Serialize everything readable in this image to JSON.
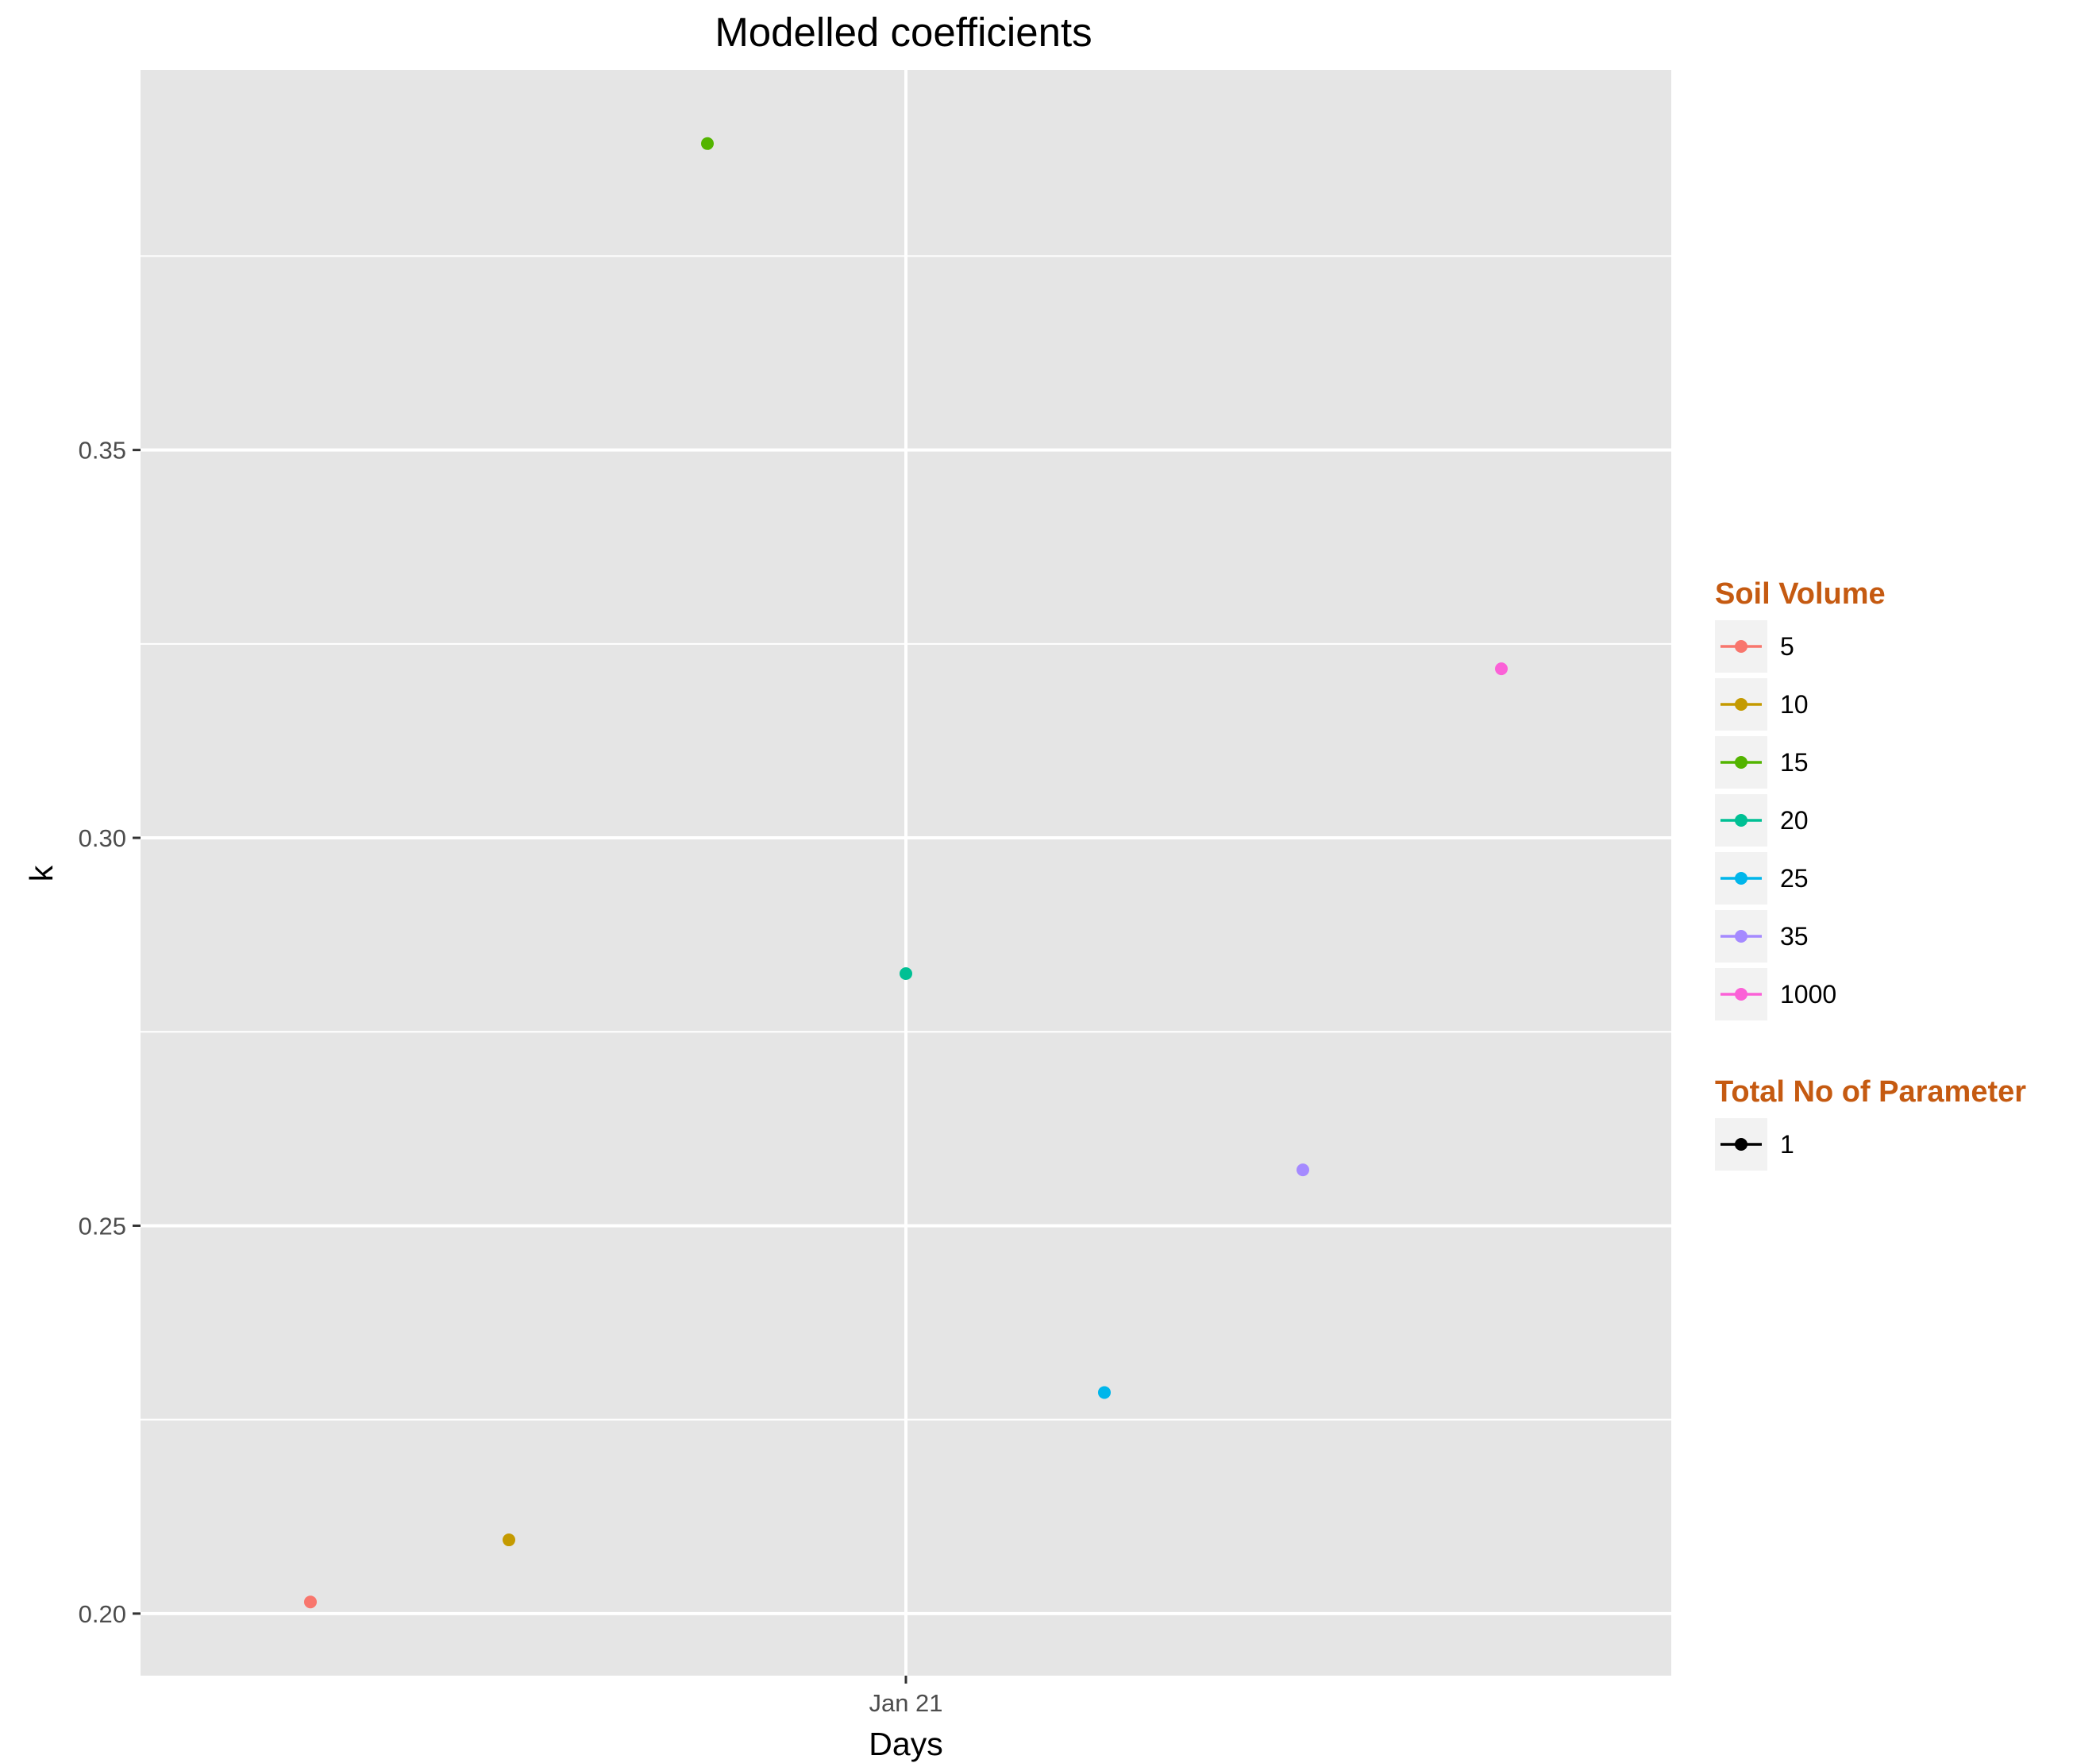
{
  "chart_data": {
    "type": "scatter",
    "title": "Modelled coefficients",
    "xlabel": "Days",
    "ylabel": "k",
    "x_ticks": [
      "Jan 21"
    ],
    "y_ticks": [
      "0.20",
      "0.25",
      "0.30",
      "0.35"
    ],
    "ylim": [
      0.192,
      0.399
    ],
    "grid": true,
    "legend_placement": "right",
    "series": [
      {
        "name": "5",
        "color": "#F8766D",
        "y": 0.2015
      },
      {
        "name": "10",
        "color": "#C49A00",
        "y": 0.2095
      },
      {
        "name": "15",
        "color": "#53B400",
        "y": 0.3895
      },
      {
        "name": "20",
        "color": "#00C094",
        "y": 0.2825
      },
      {
        "name": "25",
        "color": "#00B6EB",
        "y": 0.2285
      },
      {
        "name": "35",
        "color": "#A58AFF",
        "y": 0.2572
      },
      {
        "name": "1000",
        "color": "#FB61D7",
        "y": 0.3218
      }
    ]
  },
  "legends": [
    {
      "title": "Soil Volume",
      "items": [
        {
          "label": "5",
          "color": "#F8766D"
        },
        {
          "label": "10",
          "color": "#C49A00"
        },
        {
          "label": "15",
          "color": "#53B400"
        },
        {
          "label": "20",
          "color": "#00C094"
        },
        {
          "label": "25",
          "color": "#00B6EB"
        },
        {
          "label": "35",
          "color": "#A58AFF"
        },
        {
          "label": "1000",
          "color": "#FB61D7"
        }
      ]
    },
    {
      "title": "Total No of Parameter",
      "items": [
        {
          "label": "1",
          "color": "#000000"
        }
      ]
    }
  ]
}
